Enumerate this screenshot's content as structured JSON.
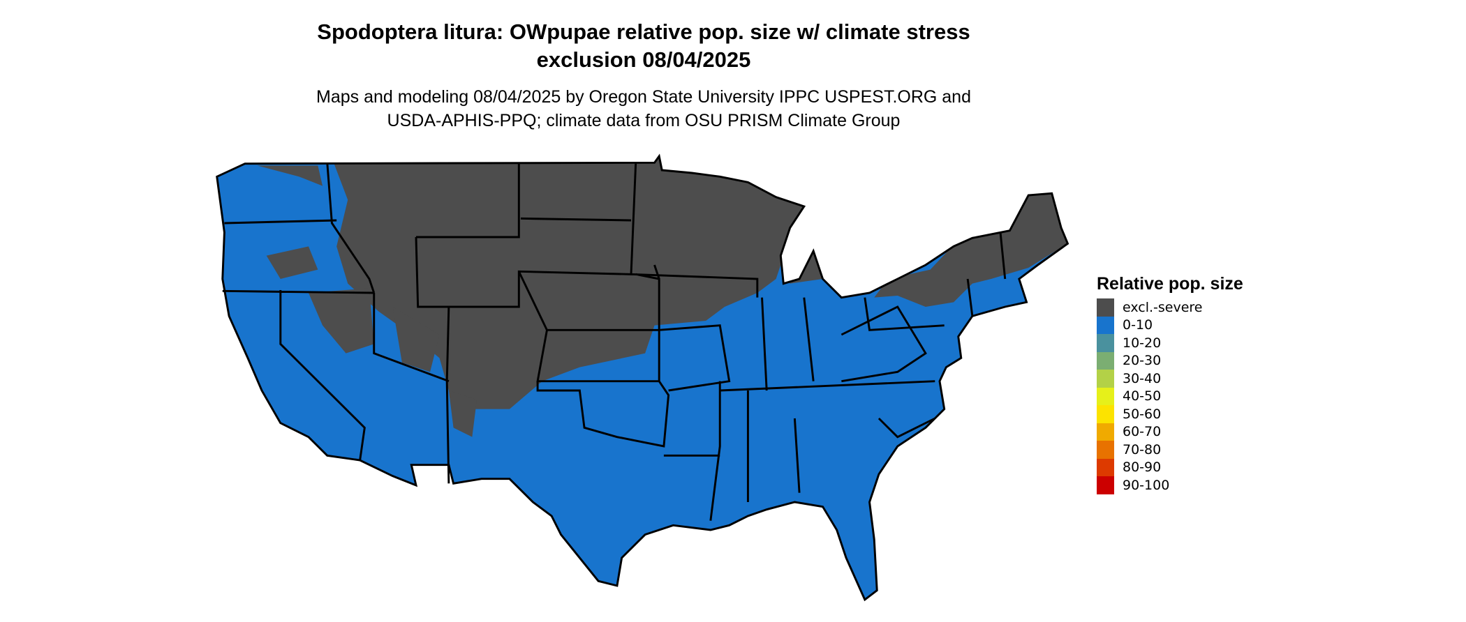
{
  "title_line1": "Spodoptera litura: OWpupae relative pop. size w/ climate stress",
  "title_line2": "exclusion 08/04/2025",
  "subtitle_line1": "Maps and modeling 08/04/2025 by Oregon State University IPPC USPEST.ORG and",
  "subtitle_line2": "USDA-APHIS-PPQ; climate data from OSU PRISM Climate Group",
  "legend": {
    "title": "Relative pop. size",
    "items": [
      {
        "label": "excl.-severe",
        "color": "#4d4d4d"
      },
      {
        "label": "0-10",
        "color": "#1874cd"
      },
      {
        "label": "10-20",
        "color": "#4a919e"
      },
      {
        "label": "20-30",
        "color": "#7bae72"
      },
      {
        "label": "30-40",
        "color": "#b3d147"
      },
      {
        "label": "40-50",
        "color": "#e6f01a"
      },
      {
        "label": "50-60",
        "color": "#fce300"
      },
      {
        "label": "60-70",
        "color": "#f0aa00"
      },
      {
        "label": "70-80",
        "color": "#e87200"
      },
      {
        "label": "80-90",
        "color": "#dd3a00"
      },
      {
        "label": "90-100",
        "color": "#cc0000"
      }
    ]
  }
}
